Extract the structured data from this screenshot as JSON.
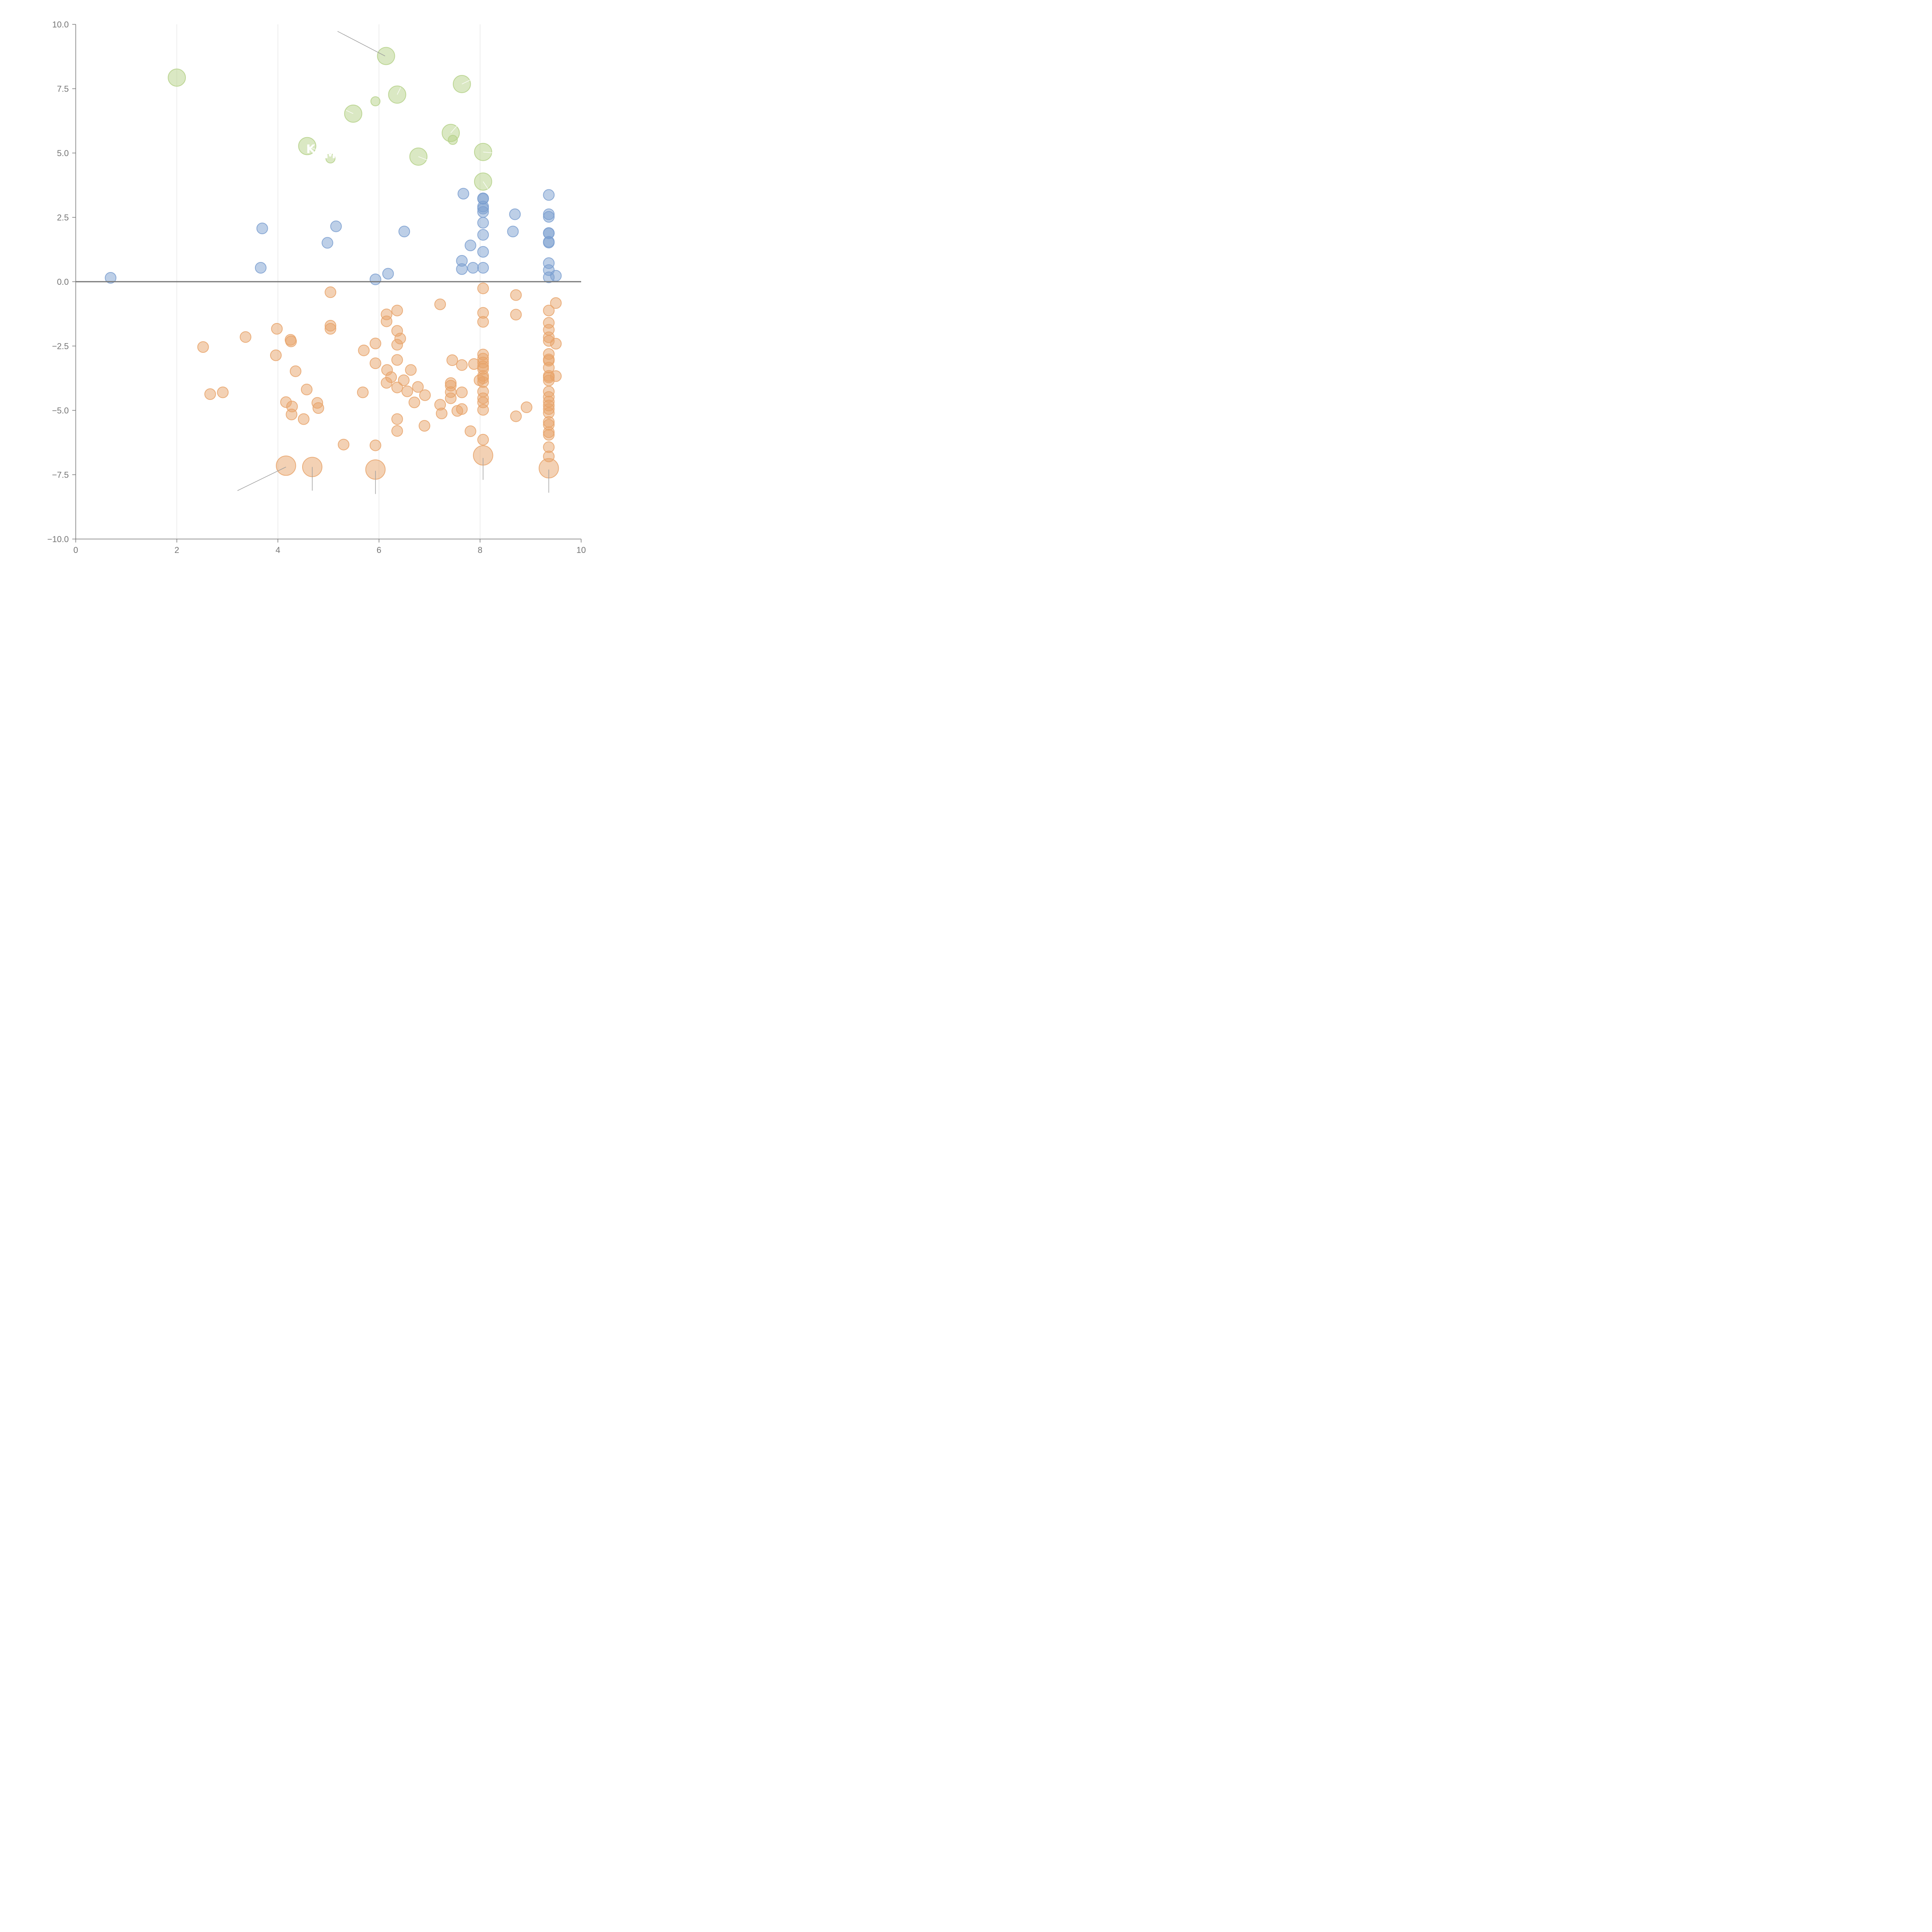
{
  "chart_data": {
    "type": "scatter",
    "title": "",
    "xlabel": "",
    "ylabel": "",
    "xlim": [
      0,
      10
    ],
    "ylim": [
      -10,
      10
    ],
    "x_ticks": [
      0,
      2,
      4,
      6,
      8,
      10
    ],
    "x_tick_labels": [
      "0",
      "2",
      "4",
      "6",
      "8",
      "10"
    ],
    "y_ticks": [
      10,
      7.5,
      5,
      2.5,
      0,
      -2.5,
      -5,
      -7.5,
      -10
    ],
    "y_tick_labels": [
      "10.0",
      "7.5",
      "5.0",
      "2.5",
      "0.0",
      "−2.5",
      "−5.0",
      "−7.5",
      "−10.0"
    ],
    "vertical_gridlines_at": [
      2,
      4,
      6,
      8
    ],
    "reference_line_y": 0,
    "annotations": [
      "K",
      "M"
    ],
    "colors": {
      "green": "#b5d188",
      "blue": "#7b9fd0",
      "orange": "#e8a36a",
      "axis": "#757575",
      "grid": "#dcdcdc"
    },
    "series": [
      {
        "name": "green",
        "color": "#b5d188",
        "points": [
          [
            2.0,
            7.93,
            1.6
          ],
          [
            6.14,
            8.77,
            1.6
          ],
          [
            7.64,
            7.68,
            1.6
          ],
          [
            6.36,
            7.27,
            1.6
          ],
          [
            5.93,
            7.01,
            0.85
          ],
          [
            5.49,
            6.53,
            1.6
          ],
          [
            7.42,
            5.78,
            1.6
          ],
          [
            7.46,
            5.51,
            0.85
          ],
          [
            4.58,
            5.27,
            1.6
          ],
          [
            8.06,
            5.04,
            1.6
          ],
          [
            6.78,
            4.86,
            1.6
          ],
          [
            5.04,
            4.79,
            0.85
          ],
          [
            8.06,
            3.89,
            1.6
          ]
        ]
      },
      {
        "name": "blue",
        "color": "#7b9fd0",
        "points": [
          [
            0.69,
            0.15,
            1
          ],
          [
            3.69,
            2.07,
            1
          ],
          [
            3.66,
            0.54,
            1
          ],
          [
            4.98,
            1.51,
            1
          ],
          [
            5.15,
            2.15,
            1
          ],
          [
            5.93,
            0.09,
            1
          ],
          [
            6.18,
            0.31,
            1
          ],
          [
            6.5,
            1.95,
            1
          ],
          [
            7.64,
            0.49,
            1
          ],
          [
            7.64,
            0.81,
            1
          ],
          [
            7.67,
            3.42,
            1
          ],
          [
            7.81,
            1.41,
            1
          ],
          [
            7.86,
            0.54,
            1
          ],
          [
            8.06,
            3.24,
            1
          ],
          [
            8.06,
            3.22,
            1
          ],
          [
            8.06,
            2.92,
            1
          ],
          [
            8.06,
            2.84,
            1
          ],
          [
            8.06,
            2.71,
            1
          ],
          [
            8.06,
            2.29,
            1
          ],
          [
            8.06,
            1.82,
            1
          ],
          [
            8.06,
            1.16,
            1
          ],
          [
            8.06,
            0.54,
            1
          ],
          [
            8.69,
            2.62,
            1
          ],
          [
            8.65,
            1.95,
            1
          ],
          [
            9.36,
            3.37,
            1
          ],
          [
            9.36,
            2.62,
            1
          ],
          [
            9.36,
            2.52,
            1
          ],
          [
            9.36,
            1.89,
            1
          ],
          [
            9.36,
            1.88,
            1
          ],
          [
            9.36,
            1.55,
            1
          ],
          [
            9.36,
            1.52,
            1
          ],
          [
            9.36,
            0.72,
            1
          ],
          [
            9.36,
            0.45,
            1
          ],
          [
            9.36,
            0.17,
            1
          ],
          [
            9.5,
            0.23,
            1
          ]
        ]
      },
      {
        "name": "orange",
        "color": "#e8a36a",
        "points": [
          [
            2.52,
            -2.54,
            1
          ],
          [
            2.66,
            -4.37,
            1
          ],
          [
            2.91,
            -4.3,
            1
          ],
          [
            3.36,
            -2.15,
            1
          ],
          [
            3.98,
            -1.83,
            1
          ],
          [
            3.96,
            -2.86,
            1
          ],
          [
            4.25,
            -2.26,
            1
          ],
          [
            4.26,
            -2.32,
            1
          ],
          [
            4.35,
            -3.48,
            1
          ],
          [
            4.16,
            -4.68,
            1
          ],
          [
            4.28,
            -4.85,
            1
          ],
          [
            4.27,
            -5.16,
            1
          ],
          [
            4.51,
            -5.34,
            1
          ],
          [
            4.57,
            -4.19,
            1
          ],
          [
            4.78,
            -4.71,
            1
          ],
          [
            4.8,
            -4.91,
            1
          ],
          [
            5.04,
            -0.41,
            1
          ],
          [
            5.04,
            -1.71,
            1
          ],
          [
            5.04,
            -1.83,
            1
          ],
          [
            5.3,
            -6.33,
            1
          ],
          [
            5.68,
            -4.3,
            1
          ],
          [
            5.7,
            -2.67,
            1
          ],
          [
            5.93,
            -2.4,
            1
          ],
          [
            5.93,
            -3.17,
            1
          ],
          [
            5.93,
            -6.36,
            1
          ],
          [
            6.15,
            -1.27,
            1
          ],
          [
            6.15,
            -1.54,
            1
          ],
          [
            6.16,
            -3.43,
            1
          ],
          [
            6.15,
            -3.93,
            1
          ],
          [
            6.24,
            -3.71,
            1
          ],
          [
            6.36,
            -1.12,
            1
          ],
          [
            6.36,
            -1.91,
            1
          ],
          [
            6.36,
            -2.45,
            1
          ],
          [
            6.42,
            -2.21,
            1
          ],
          [
            6.36,
            -3.04,
            1
          ],
          [
            6.36,
            -4.11,
            1
          ],
          [
            6.36,
            -5.34,
            1
          ],
          [
            6.36,
            -5.8,
            1
          ],
          [
            6.49,
            -3.83,
            1
          ],
          [
            6.56,
            -4.26,
            1
          ],
          [
            6.63,
            -3.43,
            1
          ],
          [
            6.7,
            -4.69,
            1
          ],
          [
            6.77,
            -4.09,
            1
          ],
          [
            6.9,
            -5.6,
            1
          ],
          [
            6.91,
            -4.41,
            1
          ],
          [
            7.21,
            -0.88,
            1
          ],
          [
            7.21,
            -4.78,
            1
          ],
          [
            7.24,
            -5.12,
            1
          ],
          [
            7.42,
            -3.94,
            1
          ],
          [
            7.42,
            -4.04,
            1
          ],
          [
            7.42,
            -4.29,
            1
          ],
          [
            7.42,
            -4.53,
            1
          ],
          [
            7.45,
            -3.05,
            1
          ],
          [
            7.55,
            -5.02,
            1
          ],
          [
            7.64,
            -3.24,
            1
          ],
          [
            7.64,
            -4.3,
            1
          ],
          [
            7.64,
            -4.95,
            1
          ],
          [
            7.81,
            -5.81,
            1
          ],
          [
            7.88,
            -3.2,
            1
          ],
          [
            8.06,
            -0.26,
            1
          ],
          [
            8.06,
            -1.21,
            1
          ],
          [
            8.06,
            -1.56,
            1
          ],
          [
            8.06,
            -2.83,
            1
          ],
          [
            8.06,
            -2.99,
            1
          ],
          [
            8.06,
            -3.14,
            1
          ],
          [
            8.06,
            -3.29,
            1
          ],
          [
            8.06,
            -3.39,
            1
          ],
          [
            8.06,
            -3.66,
            1
          ],
          [
            8.06,
            -3.75,
            1
          ],
          [
            8.06,
            -3.9,
            1
          ],
          [
            7.99,
            -3.83,
            1
          ],
          [
            8.06,
            -4.27,
            1
          ],
          [
            8.06,
            -4.53,
            1
          ],
          [
            8.06,
            -4.69,
            1
          ],
          [
            8.06,
            -4.98,
            1
          ],
          [
            8.06,
            -6.14,
            1
          ],
          [
            8.71,
            -0.52,
            1
          ],
          [
            8.71,
            -1.28,
            1
          ],
          [
            8.71,
            -5.23,
            1
          ],
          [
            8.92,
            -4.88,
            1
          ],
          [
            9.36,
            -1.12,
            1
          ],
          [
            9.36,
            -1.6,
            1
          ],
          [
            9.36,
            -1.87,
            1
          ],
          [
            9.36,
            -2.16,
            1
          ],
          [
            9.36,
            -2.3,
            1
          ],
          [
            9.36,
            -2.81,
            1
          ],
          [
            9.36,
            -3.02,
            1
          ],
          [
            9.36,
            -3.07,
            1
          ],
          [
            9.36,
            -3.34,
            1
          ],
          [
            9.36,
            -3.66,
            1
          ],
          [
            9.36,
            -3.72,
            1
          ],
          [
            9.36,
            -3.84,
            1
          ],
          [
            9.36,
            -4.27,
            1
          ],
          [
            9.36,
            -4.48,
            1
          ],
          [
            9.36,
            -4.66,
            1
          ],
          [
            9.36,
            -4.81,
            1
          ],
          [
            9.36,
            -4.95,
            1
          ],
          [
            9.36,
            -5.1,
            1
          ],
          [
            9.36,
            -5.45,
            1
          ],
          [
            9.36,
            -5.56,
            1
          ],
          [
            9.36,
            -5.85,
            1
          ],
          [
            9.36,
            -5.95,
            1
          ],
          [
            9.36,
            -6.43,
            1
          ],
          [
            9.36,
            -6.79,
            1
          ],
          [
            9.5,
            -0.83,
            1
          ],
          [
            9.5,
            -2.41,
            1
          ],
          [
            9.5,
            -3.67,
            1
          ],
          [
            4.16,
            -7.15,
            1.8
          ],
          [
            4.68,
            -7.2,
            1.8
          ],
          [
            5.93,
            -7.3,
            1.8
          ],
          [
            8.06,
            -6.75,
            1.8
          ],
          [
            9.36,
            -7.25,
            1.8
          ]
        ]
      }
    ],
    "leader_lines": [
      {
        "from": [
          5.18,
          9.73
        ],
        "to": [
          6.12,
          8.77
        ],
        "style": "gray"
      },
      {
        "from": [
          3.2,
          -8.12
        ],
        "to": [
          4.16,
          -7.2
        ],
        "style": "gray"
      },
      {
        "from": [
          4.68,
          -8.12
        ],
        "to": [
          4.68,
          -7.2
        ],
        "style": "gray"
      },
      {
        "from": [
          5.93,
          -8.25
        ],
        "to": [
          5.93,
          -7.35
        ],
        "style": "gray"
      },
      {
        "from": [
          8.06,
          -7.7
        ],
        "to": [
          8.06,
          -6.85
        ],
        "style": "gray"
      },
      {
        "from": [
          9.36,
          -8.2
        ],
        "to": [
          9.36,
          -7.3
        ],
        "style": "gray"
      },
      {
        "from": [
          7.64,
          7.68
        ],
        "to": [
          7.81,
          7.84
        ],
        "style": "light"
      },
      {
        "from": [
          6.36,
          7.27
        ],
        "to": [
          6.43,
          7.55
        ],
        "style": "light"
      },
      {
        "from": [
          5.49,
          6.53
        ],
        "to": [
          5.35,
          6.66
        ],
        "style": "light"
      },
      {
        "from": [
          7.42,
          5.78
        ],
        "to": [
          7.55,
          6.07
        ],
        "style": "light"
      },
      {
        "from": [
          8.06,
          5.04
        ],
        "to": [
          8.28,
          5.0
        ],
        "style": "light"
      },
      {
        "from": [
          6.78,
          4.86
        ],
        "to": [
          6.98,
          4.71
        ],
        "style": "light"
      },
      {
        "from": [
          8.06,
          3.89
        ],
        "to": [
          8.17,
          3.57
        ],
        "style": "light"
      },
      {
        "from": [
          4.58,
          5.27
        ],
        "to": [
          4.8,
          5.1
        ],
        "style": "light"
      }
    ],
    "annotation_positions": [
      {
        "text_index": 0,
        "x": 4.56,
        "y": 5.0
      },
      {
        "text_index": 1,
        "x": 4.92,
        "y": 4.8
      }
    ]
  }
}
